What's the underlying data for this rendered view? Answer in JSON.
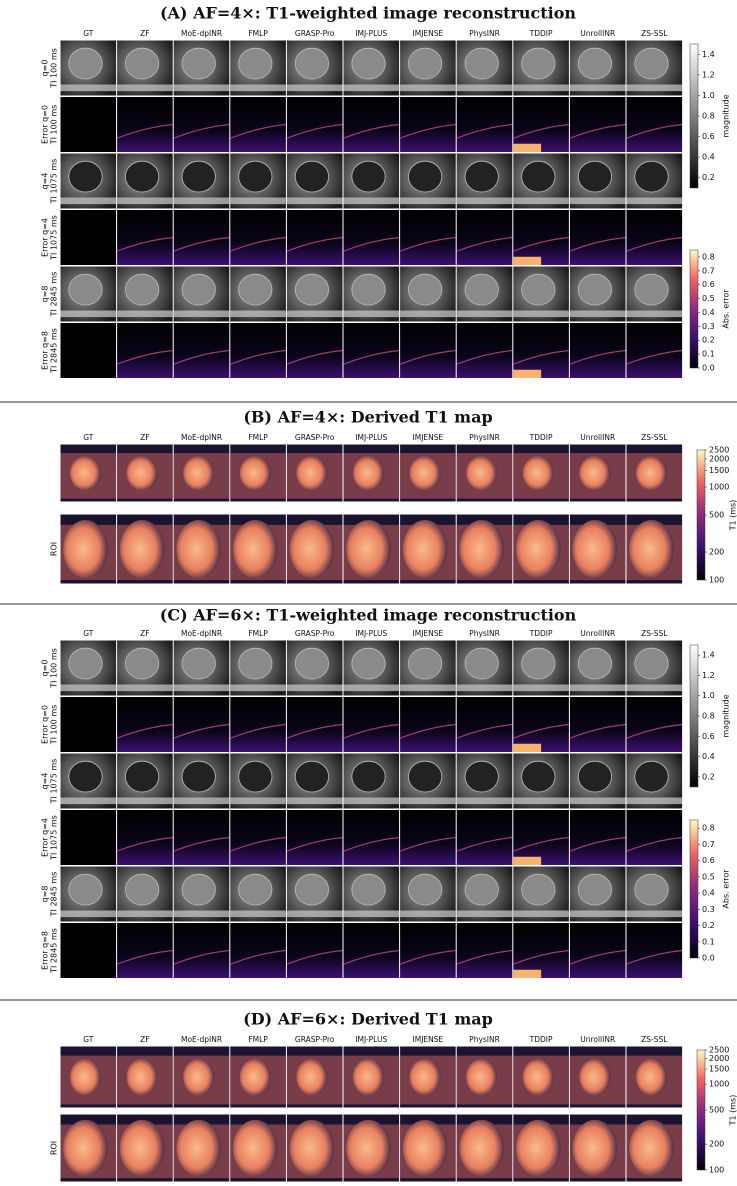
{
  "columns": [
    "GT",
    "ZF",
    "MoE-dpINR",
    "FMLP",
    "GRASP-Pro",
    "IMJ-PLUS",
    "IMJENSE",
    "PhysINR",
    "TDDIP",
    "UnrollINR",
    "ZS-SSL"
  ],
  "panels": [
    {
      "title": "(A) AF=4×: T1-weighted image reconstruction",
      "rows": [
        [
          "q=0",
          "TI 100 ms"
        ],
        [
          "Error q=0",
          "TI 100 ms"
        ],
        [
          "q=4",
          "TI 1075 ms"
        ],
        [
          "Error q=4",
          "TI 1075 ms"
        ],
        [
          "q=8",
          "TI 2845 ms"
        ],
        [
          "Error q=8",
          "TI 2845 ms"
        ]
      ],
      "colorbars": [
        {
          "label": "magnitude",
          "colormap": "gray",
          "lim": [
            0.1,
            1.5
          ],
          "ticks": [
            0.2,
            0.4,
            0.6,
            0.8,
            {
              "value": 1,
              "label": "1.0"
            },
            1.2,
            1.4
          ]
        },
        {
          "label": "Abs. error",
          "colormap": "magma",
          "lim": [
            0,
            0.85
          ],
          "ticks": [
            {
              "value": 0,
              "label": "0.0"
            },
            0.1,
            0.2,
            0.3,
            0.4,
            0.5,
            0.6,
            0.7,
            0.8
          ]
        }
      ]
    },
    {
      "title": "(B) AF=4×: Derived T1 map",
      "rows": [
        null,
        [
          "ROI"
        ]
      ],
      "colorbars": [
        {
          "label": "T1 (ms)",
          "colormap": "magma",
          "log": true,
          "lim": [
            100,
            2500
          ],
          "ticks": [
            100,
            200,
            500,
            1000,
            1500,
            2000,
            2500
          ]
        }
      ]
    },
    {
      "title": "(C) AF=6×: T1-weighted image reconstruction",
      "rows": [
        [
          "q=0",
          "TI 100 ms"
        ],
        [
          "Error q=0",
          "TI 100 ms"
        ],
        [
          "q=4",
          "TI 1075 ms"
        ],
        [
          "Error q=4",
          "TI 1075 ms"
        ],
        [
          "q=8",
          "TI 2845 ms"
        ],
        [
          "Error q=8",
          "TI 2845 ms"
        ]
      ],
      "colorbars": [
        {
          "label": "magnitude",
          "colormap": "gray",
          "lim": [
            0.1,
            1.5
          ],
          "ticks": [
            0.2,
            0.4,
            0.6,
            0.8,
            {
              "value": 1,
              "label": "1.0"
            },
            1.2,
            1.4
          ]
        },
        {
          "label": "Abs. error",
          "colormap": "magma",
          "lim": [
            0,
            0.85
          ],
          "ticks": [
            {
              "value": 0,
              "label": "0.0"
            },
            0.1,
            0.2,
            0.3,
            0.4,
            0.5,
            0.6,
            0.7,
            0.8
          ]
        }
      ]
    },
    {
      "title": "(D) AF=6×: Derived T1 map",
      "rows": [
        null,
        [
          "ROI"
        ]
      ],
      "colorbars": [
        {
          "label": "T1 (ms)",
          "colormap": "magma",
          "log": true,
          "lim": [
            100,
            2500
          ],
          "ticks": [
            100,
            200,
            500,
            1000,
            1500,
            2000,
            2500
          ]
        }
      ]
    }
  ]
}
